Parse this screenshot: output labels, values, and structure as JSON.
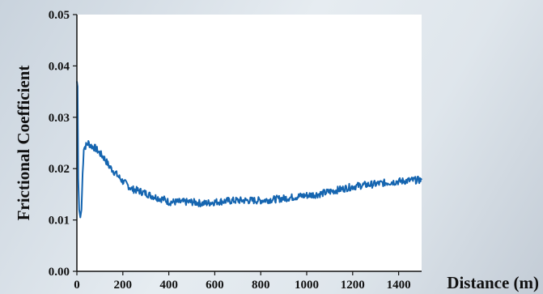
{
  "chart_data": {
    "type": "line",
    "title": "",
    "xlabel": "Distance (m)",
    "ylabel": "Frictional Coefficient",
    "xlim": [
      0,
      1500
    ],
    "ylim": [
      0,
      0.05
    ],
    "xticks": [
      0,
      200,
      400,
      600,
      800,
      1000,
      1200,
      1400
    ],
    "xtick_labels": [
      "0",
      "200",
      "400",
      "600",
      "800",
      "1000",
      "1200",
      "1400"
    ],
    "yticks": [
      0,
      0.01,
      0.02,
      0.03,
      0.04,
      0.05
    ],
    "ytick_labels": [
      "0.00",
      "0.01",
      "0.02",
      "0.03",
      "0.04",
      "0.05"
    ],
    "grid": false,
    "legend": "none",
    "colors": {
      "series": "#1565b0",
      "axis": "#111111",
      "plot_bg": "#ffffff"
    },
    "series": [
      {
        "x": [
          0,
          3,
          6,
          10,
          15,
          20,
          25,
          30,
          40,
          50,
          60,
          80,
          100,
          120,
          140,
          160,
          180,
          200,
          220,
          240,
          260,
          280,
          300,
          320,
          340,
          360,
          380,
          400,
          450,
          500,
          550,
          600,
          650,
          700,
          750,
          800,
          850,
          900,
          950,
          1000,
          1050,
          1100,
          1150,
          1200,
          1250,
          1300,
          1350,
          1400,
          1450,
          1500
        ],
        "y": [
          0.037,
          0.036,
          0.018,
          0.012,
          0.0105,
          0.012,
          0.019,
          0.024,
          0.0245,
          0.025,
          0.0245,
          0.024,
          0.023,
          0.022,
          0.0205,
          0.0195,
          0.0185,
          0.0175,
          0.0168,
          0.016,
          0.0158,
          0.0155,
          0.0152,
          0.0148,
          0.0145,
          0.0142,
          0.014,
          0.0135,
          0.0135,
          0.0135,
          0.0132,
          0.0135,
          0.0137,
          0.0138,
          0.0138,
          0.0138,
          0.014,
          0.0142,
          0.0145,
          0.0148,
          0.015,
          0.0155,
          0.016,
          0.0165,
          0.0168,
          0.017,
          0.0173,
          0.0175,
          0.0177,
          0.0178
        ]
      }
    ]
  }
}
